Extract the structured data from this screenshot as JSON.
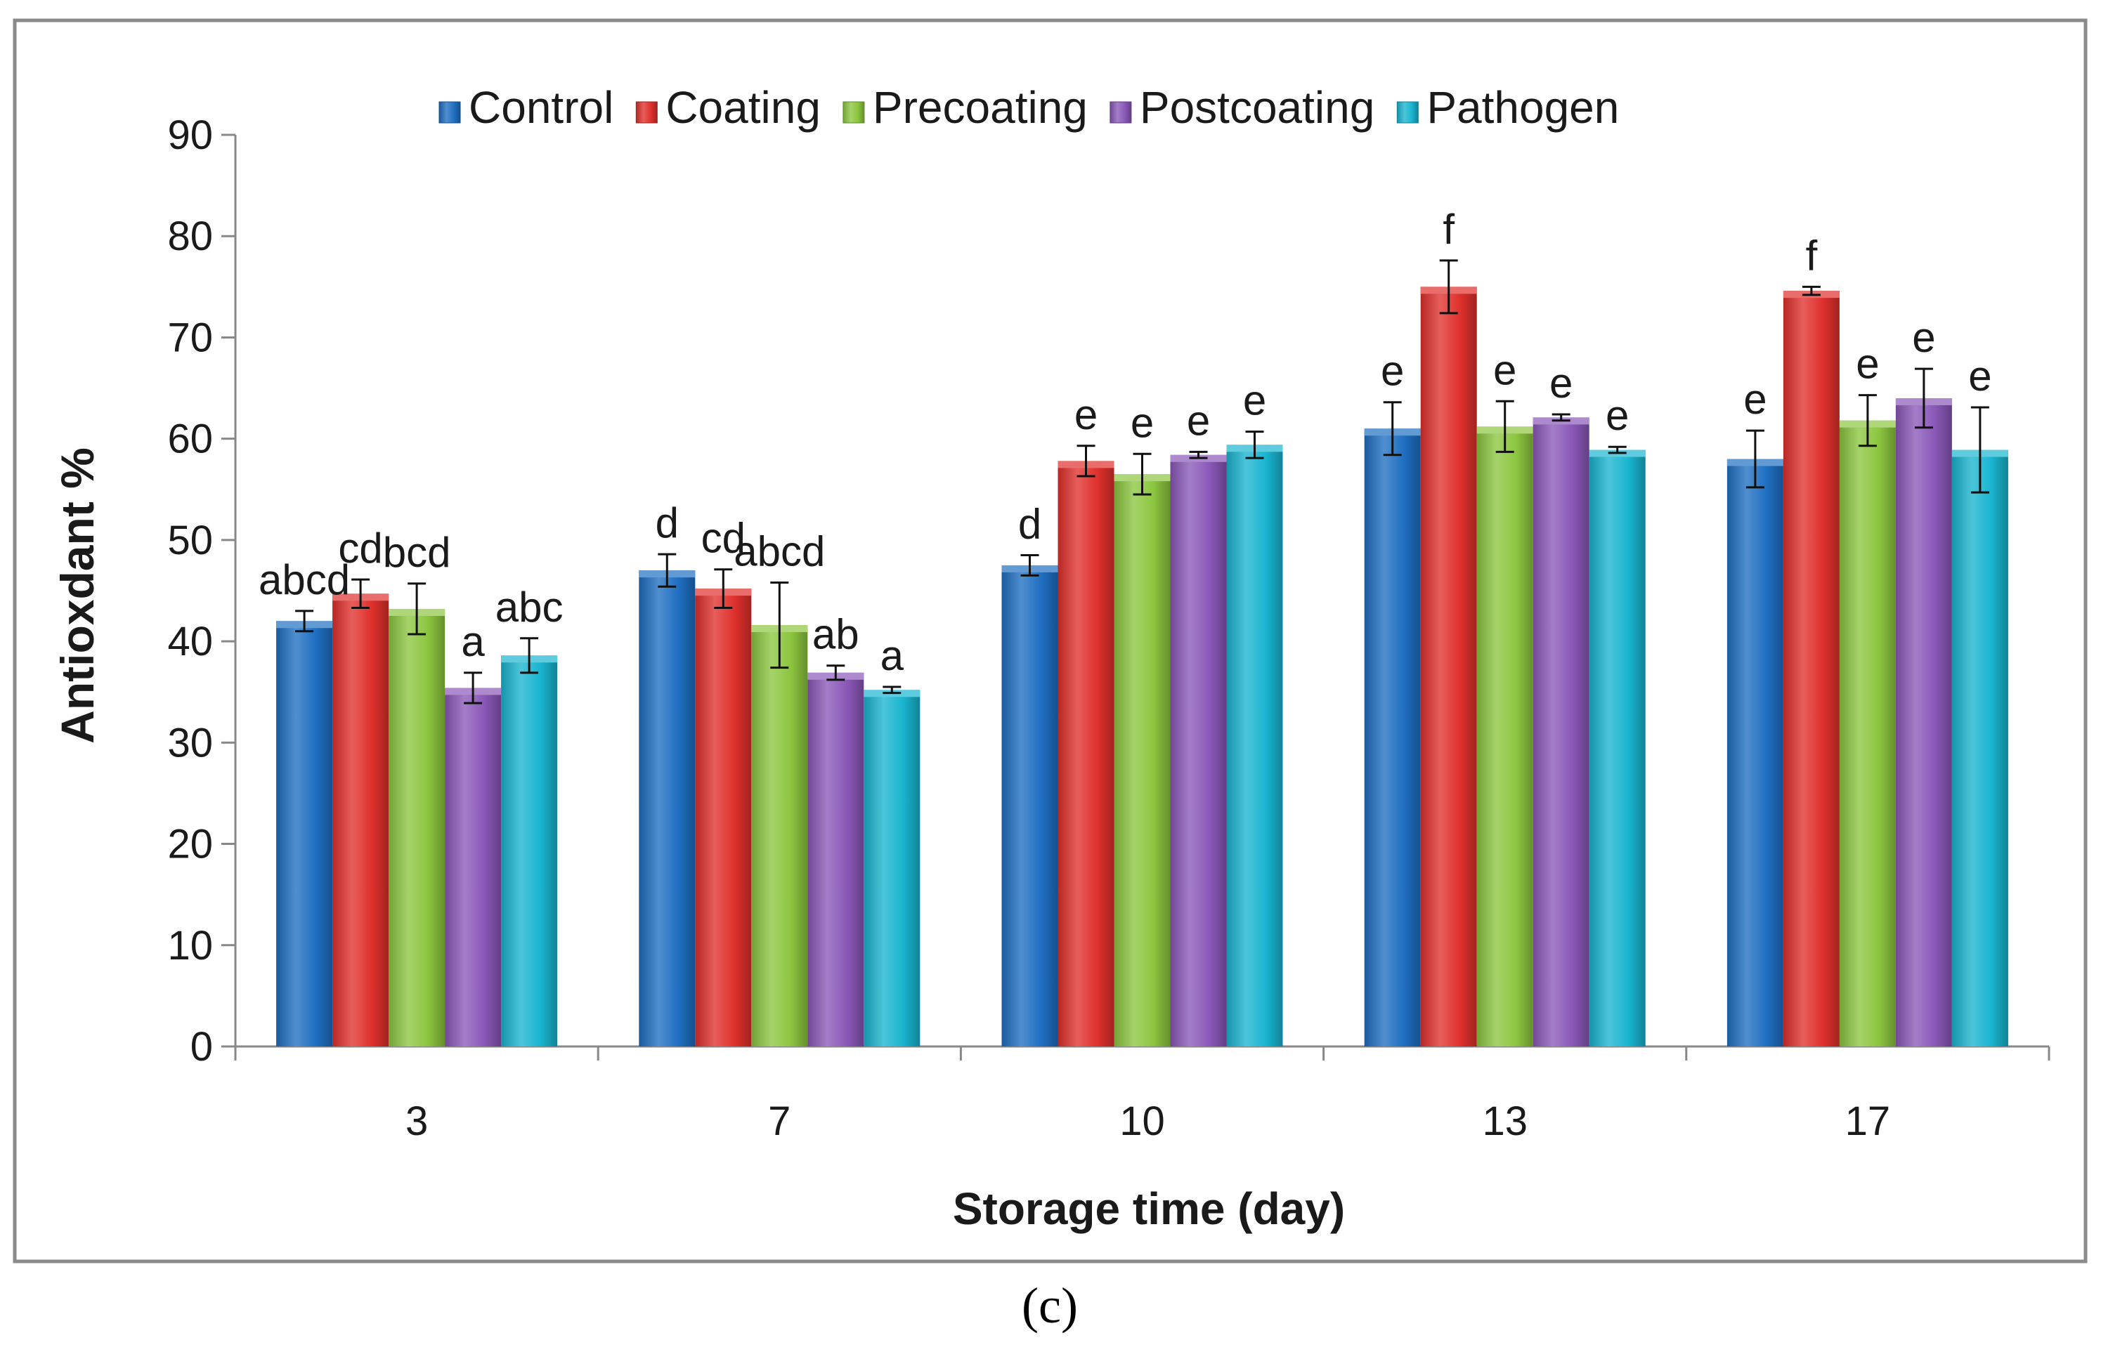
{
  "panel_label": "(c)",
  "chart_data": {
    "type": "bar",
    "title": "",
    "xlabel": "Storage time (day)",
    "ylabel": "Antioxdant %",
    "ylim": [
      0,
      90
    ],
    "yticks": [
      0,
      10,
      20,
      30,
      40,
      50,
      60,
      70,
      80,
      90
    ],
    "categories": [
      "3",
      "7",
      "10",
      "13",
      "17"
    ],
    "legend_position": "top",
    "grid": false,
    "series": [
      {
        "name": "Control",
        "color": "#1f6fc2",
        "values": [
          42,
          47,
          47.5,
          61,
          58
        ],
        "errors": [
          1,
          1.6,
          1,
          2.6,
          2.8
        ],
        "letters": [
          "abcd",
          "d",
          "d",
          "e",
          "e"
        ]
      },
      {
        "name": "Coating",
        "color": "#e0302c",
        "values": [
          44.7,
          45.2,
          57.8,
          75,
          74.6
        ],
        "errors": [
          1.4,
          1.9,
          1.5,
          2.6,
          0.4
        ],
        "letters": [
          "cd",
          "cd",
          "e",
          "f",
          "f"
        ]
      },
      {
        "name": "Precoating",
        "color": "#8cc63f",
        "values": [
          43.2,
          41.6,
          56.5,
          61.2,
          61.8
        ],
        "errors": [
          2.5,
          4.2,
          2,
          2.5,
          2.5
        ],
        "letters": [
          "bcd",
          "abcd",
          "e",
          "e",
          "e"
        ]
      },
      {
        "name": "Postcoating",
        "color": "#8a58b8",
        "values": [
          35.4,
          36.9,
          58.4,
          62.1,
          64
        ],
        "errors": [
          1.5,
          0.7,
          0.3,
          0.3,
          2.9
        ],
        "letters": [
          "a",
          "ab",
          "e",
          "e",
          "e"
        ]
      },
      {
        "name": "Pathogen",
        "color": "#19b5d0",
        "values": [
          38.6,
          35.2,
          59.4,
          58.9,
          58.9
        ],
        "errors": [
          1.7,
          0.3,
          1.3,
          0.3,
          4.2
        ],
        "letters": [
          "abc",
          "a",
          "e",
          "e",
          "e"
        ]
      }
    ]
  }
}
